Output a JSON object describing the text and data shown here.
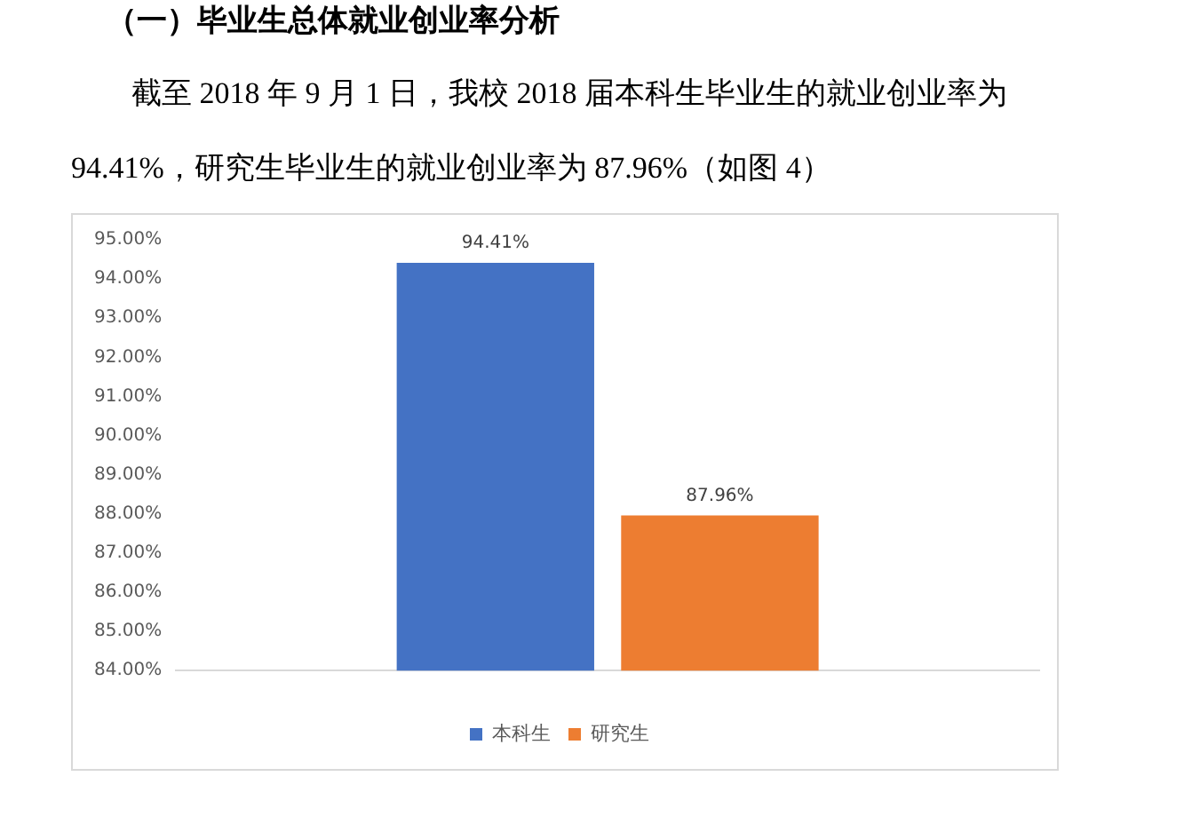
{
  "chart_data": {
    "type": "bar",
    "title": "（一）毕业生总体就业创业率分析",
    "subtitle": "截至 2018 年 9 月 1 日，我校 2018 届本科生毕业生的就业创业率为 94.41%，研究生毕业生的就业创业率为 87.96%（如图 4）",
    "categories": [
      null
    ],
    "series": [
      {
        "name": "本科生",
        "color": "#4472c4",
        "values": [
          94.41
        ],
        "value_labels": [
          "94.41%"
        ]
      },
      {
        "name": "研究生",
        "color": "#ed7d31",
        "values": [
          87.96
        ],
        "value_labels": [
          "87.96%"
        ]
      }
    ],
    "ylim": [
      84,
      95
    ],
    "yticks": [
      {
        "value": 84,
        "label": "84.00%"
      },
      {
        "value": 85,
        "label": "85.00%"
      },
      {
        "value": 86,
        "label": "86.00%"
      },
      {
        "value": 87,
        "label": "87.00%"
      },
      {
        "value": 88,
        "label": "88.00%"
      },
      {
        "value": 89,
        "label": "89.00%"
      },
      {
        "value": 90,
        "label": "90.00%"
      },
      {
        "value": 91,
        "label": "91.00%"
      },
      {
        "value": 92,
        "label": "92.00%"
      },
      {
        "value": 93,
        "label": "93.00%"
      },
      {
        "value": 94,
        "label": "94.00%"
      },
      {
        "value": 95,
        "label": "95.00%"
      }
    ],
    "grid": false,
    "legend": "bottom"
  }
}
